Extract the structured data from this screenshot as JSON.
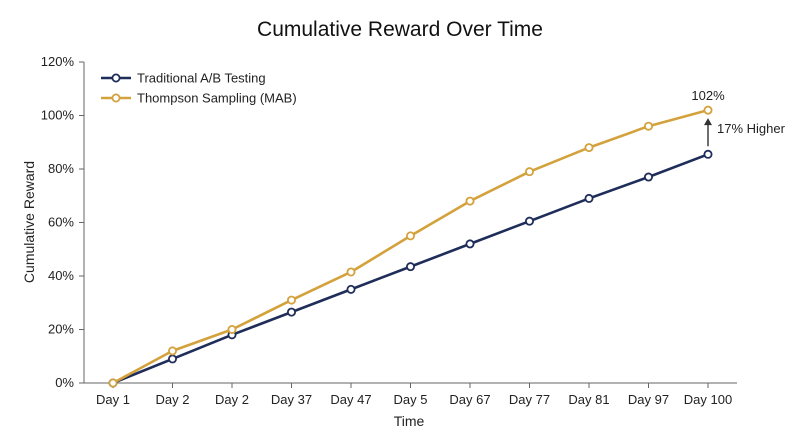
{
  "chart_data": {
    "type": "line",
    "title": "Cumulative Reward Over Time",
    "xlabel": "Time",
    "ylabel": "Cumulative Reward",
    "categories": [
      "Day 1",
      "Day 2",
      "Day 2",
      "Day 37",
      "Day 47",
      "Day 5",
      "Day 67",
      "Day 77",
      "Day 81",
      "Day 97",
      "Day 100"
    ],
    "ylim": [
      0,
      120
    ],
    "yticks": [
      "0%",
      "20%",
      "40%",
      "60%",
      "80%",
      "100%",
      "120%"
    ],
    "grid": false,
    "legend_position": "top-left",
    "series": [
      {
        "name": "Traditional A/B Testing",
        "color": "#1f2d5a",
        "values": [
          0,
          9,
          18,
          26.5,
          35,
          43.5,
          52,
          60.5,
          69,
          77,
          85.5
        ]
      },
      {
        "name": "Thompson Sampling (MAB)",
        "color": "#d4a23c",
        "values": [
          0,
          12,
          20,
          31,
          41.5,
          55,
          68,
          79,
          88,
          96,
          102
        ]
      }
    ],
    "annotations": {
      "end_value_label": "102%",
      "difference_label": "17% Higher"
    }
  }
}
